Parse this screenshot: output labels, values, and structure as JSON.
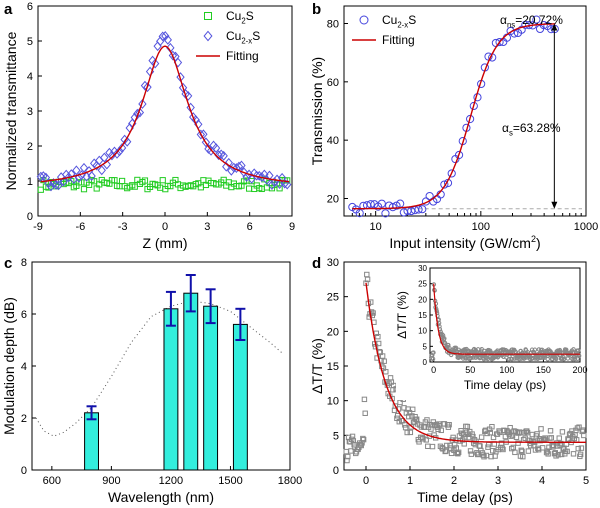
{
  "chart_data": [
    {
      "panel": "a",
      "type": "scatter",
      "xlabel": "Z (mm)",
      "ylabel": "Normalized transmittance",
      "xlim": [
        -9,
        9
      ],
      "ylim": [
        0,
        6
      ],
      "xticks": [
        "-9",
        "-6",
        "-3",
        "0",
        "3",
        "6",
        "9"
      ],
      "yticks": [
        "0",
        "1",
        "2",
        "3",
        "4",
        "5",
        "6"
      ],
      "legend": [
        {
          "label_main": "Cu",
          "label_sub": "2",
          "label_end": "S",
          "marker": "square",
          "color": "#22cc22"
        },
        {
          "label_main": "Cu",
          "label_sub": "2-x",
          "label_end": "S",
          "marker": "diamond",
          "color": "#5555dd"
        },
        {
          "label_main": "Fitting",
          "label_sub": "",
          "label_end": "",
          "marker": "line",
          "color": "#cc0000"
        }
      ],
      "series": [
        {
          "name": "Cu2S",
          "kind": "flat",
          "y_mean": 0.9,
          "noise": 0.15,
          "color": "#22cc22"
        },
        {
          "name": "Cu2-xS",
          "kind": "lorentz",
          "base": 0.78,
          "amplitude": 4.2,
          "z0": 2.0,
          "noise": 0.18,
          "color": "#5555dd"
        },
        {
          "name": "Fitting",
          "kind": "lorentz-line",
          "base": 0.78,
          "amplitude": 4.07,
          "z0": 2.0,
          "color": "#cc0000"
        }
      ]
    },
    {
      "panel": "b",
      "type": "scatter",
      "xscale": "log",
      "xlabel_main": "Input intensity (GW/cm",
      "xlabel_sup": "2",
      "xlabel_end": ")",
      "ylabel": "Transmission (%)",
      "xlim": [
        5,
        1000
      ],
      "ylim": [
        14,
        86
      ],
      "xticks": [
        10,
        100,
        1000
      ],
      "xtick_labels": [
        "10",
        "100",
        "1000"
      ],
      "yticks": [
        20,
        40,
        60,
        80
      ],
      "ytick_labels": [
        "20",
        "40",
        "60",
        "80"
      ],
      "legend": [
        {
          "label_main": "Cu",
          "label_sub": "2-x",
          "label_end": "S",
          "marker": "circle",
          "color": "#4444dd"
        },
        {
          "label_main": "Fitting",
          "label_sub": "",
          "label_end": "",
          "marker": "line",
          "color": "#cc0000"
        }
      ],
      "series": [
        {
          "name": "Cu2-xS",
          "kind": "sigmoid",
          "low": 16.5,
          "high": 80,
          "x50": 80,
          "width": 0.55,
          "noise": 1.8,
          "color": "#4444dd"
        },
        {
          "name": "Fitting",
          "kind": "sigmoid-line",
          "low": 16.5,
          "high": 80,
          "x50": 80,
          "width": 0.55,
          "color": "#cc0000"
        }
      ],
      "annotations": {
        "alpha_ns_sym": "α",
        "alpha_ns_sub": "ns",
        "alpha_ns_val": "=20.72%",
        "alpha_s_sym": "α",
        "alpha_s_sub": "s",
        "alpha_s_val": "=63.28%",
        "arrow_x": 500,
        "arrow_top": 80,
        "arrow_bottom": 16.5,
        "baseline_y": 16.5
      }
    },
    {
      "panel": "c",
      "type": "bar",
      "xlabel": "Wavelength (nm)",
      "ylabel": "Modulation depth (dB)",
      "xlim": [
        500,
        1800
      ],
      "ylim": [
        0,
        8
      ],
      "xticks": [
        600,
        900,
        1200,
        1500,
        1800
      ],
      "xtick_labels": [
        "600",
        "900",
        "1200",
        "1500",
        "1800"
      ],
      "yticks": [
        0,
        2,
        4,
        6,
        8
      ],
      "ytick_labels": [
        "0",
        "2",
        "4",
        "6",
        "8"
      ],
      "bars": [
        {
          "x": 800,
          "value": 2.2,
          "err": 0.25
        },
        {
          "x": 1200,
          "value": 6.2,
          "err": 0.65
        },
        {
          "x": 1300,
          "value": 6.8,
          "err": 0.7
        },
        {
          "x": 1400,
          "value": 6.3,
          "err": 0.65
        },
        {
          "x": 1550,
          "value": 5.6,
          "err": 0.6
        }
      ],
      "bar_width_nm": 70,
      "bar_color": "#33eedd",
      "err_color": "#1010aa",
      "dotted_curve": {
        "x": [
          520,
          560,
          610,
          660,
          720,
          800,
          900,
          1000,
          1100,
          1200,
          1300,
          1400,
          1500,
          1600,
          1700,
          1760
        ],
        "y": [
          2.0,
          1.5,
          1.3,
          1.45,
          1.8,
          2.4,
          3.6,
          4.9,
          5.9,
          6.3,
          6.5,
          6.4,
          6.1,
          5.5,
          4.9,
          4.5
        ]
      }
    },
    {
      "panel": "d",
      "type": "scatter",
      "xlabel": "Time delay (ps)",
      "ylabel": "ΔT/T (%)",
      "xlim": [
        -0.5,
        5
      ],
      "ylim": [
        0,
        30
      ],
      "xticks": [
        0,
        1,
        2,
        3,
        4,
        5
      ],
      "xtick_labels": [
        "0",
        "1",
        "2",
        "3",
        "4",
        "5"
      ],
      "yticks": [
        0,
        5,
        10,
        15,
        20,
        25,
        30
      ],
      "ytick_labels": [
        "0",
        "5",
        "10",
        "15",
        "20",
        "25",
        "30"
      ],
      "series": [
        {
          "name": "data",
          "kind": "decay",
          "peak_t": 0.0,
          "peak": 27,
          "base": 4,
          "tau": 0.5,
          "noise": 2.2,
          "color": "#888888"
        },
        {
          "name": "fit",
          "kind": "decay-line",
          "peak_t": 0.0,
          "peak": 27,
          "base": 4,
          "tau": 0.45,
          "color": "#cc0000"
        }
      ],
      "inset": {
        "xlabel": "Time delay (ps)",
        "ylabel": "ΔT/T (%)",
        "xlim": [
          -5,
          200
        ],
        "ylim": [
          0,
          30
        ],
        "xticks": [
          0,
          50,
          100,
          150,
          200
        ],
        "xtick_labels": [
          "0",
          "50",
          "100",
          "150",
          "200"
        ],
        "yticks": [
          0,
          5,
          10,
          15,
          20,
          25,
          30
        ],
        "ytick_labels": [
          "0",
          "5",
          "10",
          "15",
          "20",
          "25",
          "30"
        ],
        "series": [
          {
            "name": "data",
            "kind": "decay",
            "peak": 25,
            "base": 2.5,
            "tau": 8,
            "noise": 1.6,
            "color": "#888888"
          },
          {
            "name": "fit",
            "kind": "decay-line",
            "peak": 25,
            "base": 2.5,
            "tau": 6,
            "color": "#cc0000"
          }
        ]
      }
    }
  ],
  "panel_labels": [
    "a",
    "b",
    "c",
    "d"
  ]
}
